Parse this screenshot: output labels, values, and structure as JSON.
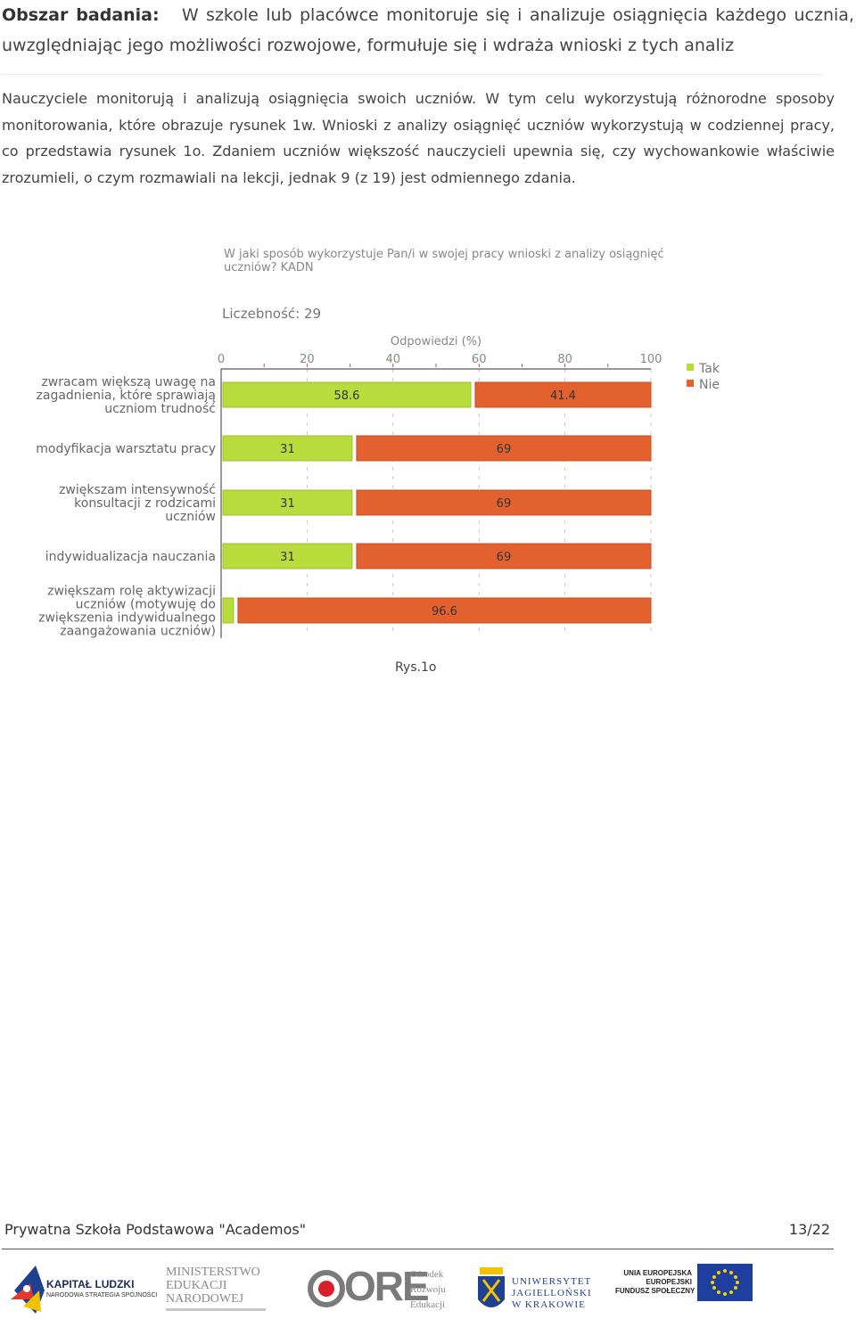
{
  "section": {
    "label": "Obszar badania:",
    "title": "W szkole lub placówce monitoruje się i analizuje osiągnięcia każdego ucznia, uwzględniając jego możliwości rozwojowe, formułuje się i wdraża wnioski z tych analiz"
  },
  "paragraph": "Nauczyciele monitorują i analizują osiągnięcia swoich uczniów. W tym celu wykorzystują różnorodne sposoby monitorowania, które obrazuje rysunek 1w. Wnioski z analizy osiągnięć uczniów wykorzystują w codziennej pracy, co przedstawia rysunek 1o. Zdaniem uczniów większość nauczycieli upewnia się, czy wychowankowie właściwie zrozumieli, o czym rozmawiali na lekcji, jednak 9 (z 19) jest odmiennego zdania.",
  "chart_data": {
    "type": "bar",
    "orientation": "horizontal",
    "stacked": true,
    "title_lines": [
      "W jaki sposób wykorzystuje Pan/i w swojej pracy wnioski z analizy osiągnięć",
      "uczniów? KADN"
    ],
    "count_label": "Liczebność: 29",
    "xlabel": "Odpowiedzi (%)",
    "xlim": [
      0,
      100
    ],
    "xticks": [
      "0",
      "20",
      "40",
      "60",
      "80",
      "100"
    ],
    "categories": [
      [
        "zwracam większą uwagę na",
        "zagadnienia, które sprawiają",
        "uczniom trudność"
      ],
      [
        "modyfikacja warsztatu pracy"
      ],
      [
        "zwiększam intensywność",
        "konsultacji z rodzicami",
        "uczniów"
      ],
      [
        "indywidualizacja nauczania"
      ],
      [
        "zwiększam rolę aktywizacji",
        "uczniów (motywuję do",
        "zwiększenia indywidualnego",
        "zaangażowania uczniów)"
      ]
    ],
    "series": [
      {
        "name": "Tak",
        "color": "#b7dc3c",
        "values": [
          58.6,
          31,
          31,
          31,
          3.4
        ],
        "labels": [
          "58.6",
          "31",
          "31",
          "31",
          ""
        ]
      },
      {
        "name": "Nie",
        "color": "#e2612e",
        "values": [
          41.4,
          69,
          69,
          69,
          96.6
        ],
        "labels": [
          "41.4",
          "69",
          "69",
          "69",
          "96.6"
        ]
      }
    ],
    "legend_position": "right",
    "grid": true
  },
  "caption": "Rys.1o",
  "footer": {
    "school": "Prywatna Szkoła Podstawowa \"Academos\"",
    "page": "13/22"
  },
  "logos": {
    "kl_title": "KAPITAŁ LUDZKI",
    "kl_sub": "NARODOWA STRATEGIA SPÓJNOŚCI",
    "men_lines": [
      "MINISTERSTWO",
      "EDUKACJI",
      "NARODOWEJ"
    ],
    "ore_mark": "ORE",
    "ore_lines": [
      "Ośrodek",
      "Rozwoju",
      "Edukacji"
    ],
    "uj_lines": [
      "UNIWERSYTET",
      "JAGIELLOŃSKI",
      "W KRAKOWIE"
    ],
    "ue_lines": [
      "UNIA EUROPEJSKA",
      "EUROPEJSKI",
      "FUNDUSZ SPOŁECZNY"
    ]
  }
}
